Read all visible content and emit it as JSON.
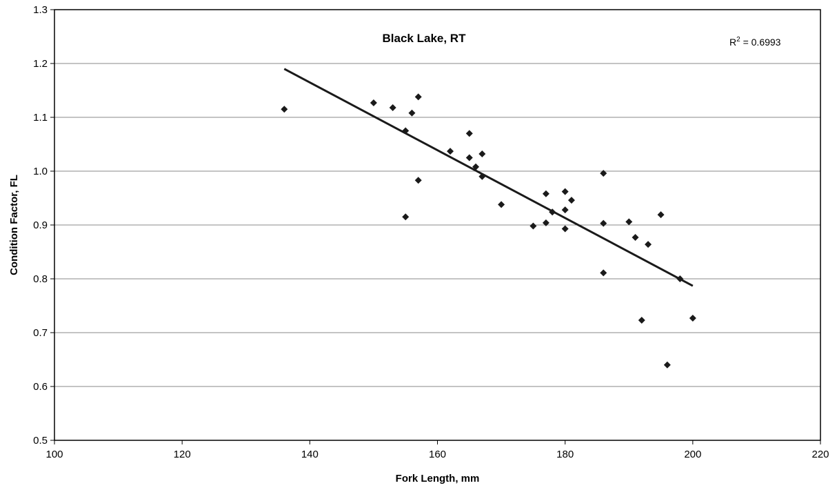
{
  "chart_data": {
    "type": "scatter",
    "title": "Black Lake, RT",
    "xlabel": "Fork Length, mm",
    "ylabel": "Condition Factor, FL",
    "xlim": [
      100,
      220
    ],
    "ylim": [
      0.5,
      1.3
    ],
    "x_ticks": [
      "100",
      "120",
      "140",
      "160",
      "180",
      "200",
      "220"
    ],
    "y_ticks": [
      "0.5",
      "0.6",
      "0.7",
      "0.8",
      "0.9",
      "1.0",
      "1.1",
      "1.2",
      "1.3"
    ],
    "grid": "horizontal",
    "annotation": {
      "r2_prefix": "R",
      "r2_sup": "2",
      "r2_value": " = 0.6993"
    },
    "series": [
      {
        "marker": "diamond",
        "color": "#1a1a1a",
        "points": [
          [
            136,
            1.115
          ],
          [
            150,
            1.127
          ],
          [
            153,
            1.118
          ],
          [
            155,
            1.075
          ],
          [
            155,
            0.915
          ],
          [
            156,
            1.108
          ],
          [
            157,
            1.138
          ],
          [
            157,
            0.983
          ],
          [
            162,
            1.037
          ],
          [
            165,
            1.07
          ],
          [
            165,
            1.025
          ],
          [
            166,
            1.008
          ],
          [
            167,
            1.032
          ],
          [
            167,
            0.99
          ],
          [
            170,
            0.938
          ],
          [
            175,
            0.898
          ],
          [
            177,
            0.958
          ],
          [
            177,
            0.904
          ],
          [
            178,
            0.924
          ],
          [
            180,
            0.962
          ],
          [
            180,
            0.928
          ],
          [
            180,
            0.893
          ],
          [
            181,
            0.946
          ],
          [
            186,
            0.996
          ],
          [
            186,
            0.903
          ],
          [
            186,
            0.811
          ],
          [
            190,
            0.906
          ],
          [
            191,
            0.877
          ],
          [
            192,
            0.723
          ],
          [
            193,
            0.864
          ],
          [
            195,
            0.919
          ],
          [
            196,
            0.64
          ],
          [
            198,
            0.8
          ],
          [
            200,
            0.727
          ]
        ]
      }
    ],
    "trendline": {
      "type": "linear",
      "x": [
        136,
        200
      ],
      "y": [
        1.19,
        0.787
      ],
      "color": "#1a1a1a"
    }
  }
}
